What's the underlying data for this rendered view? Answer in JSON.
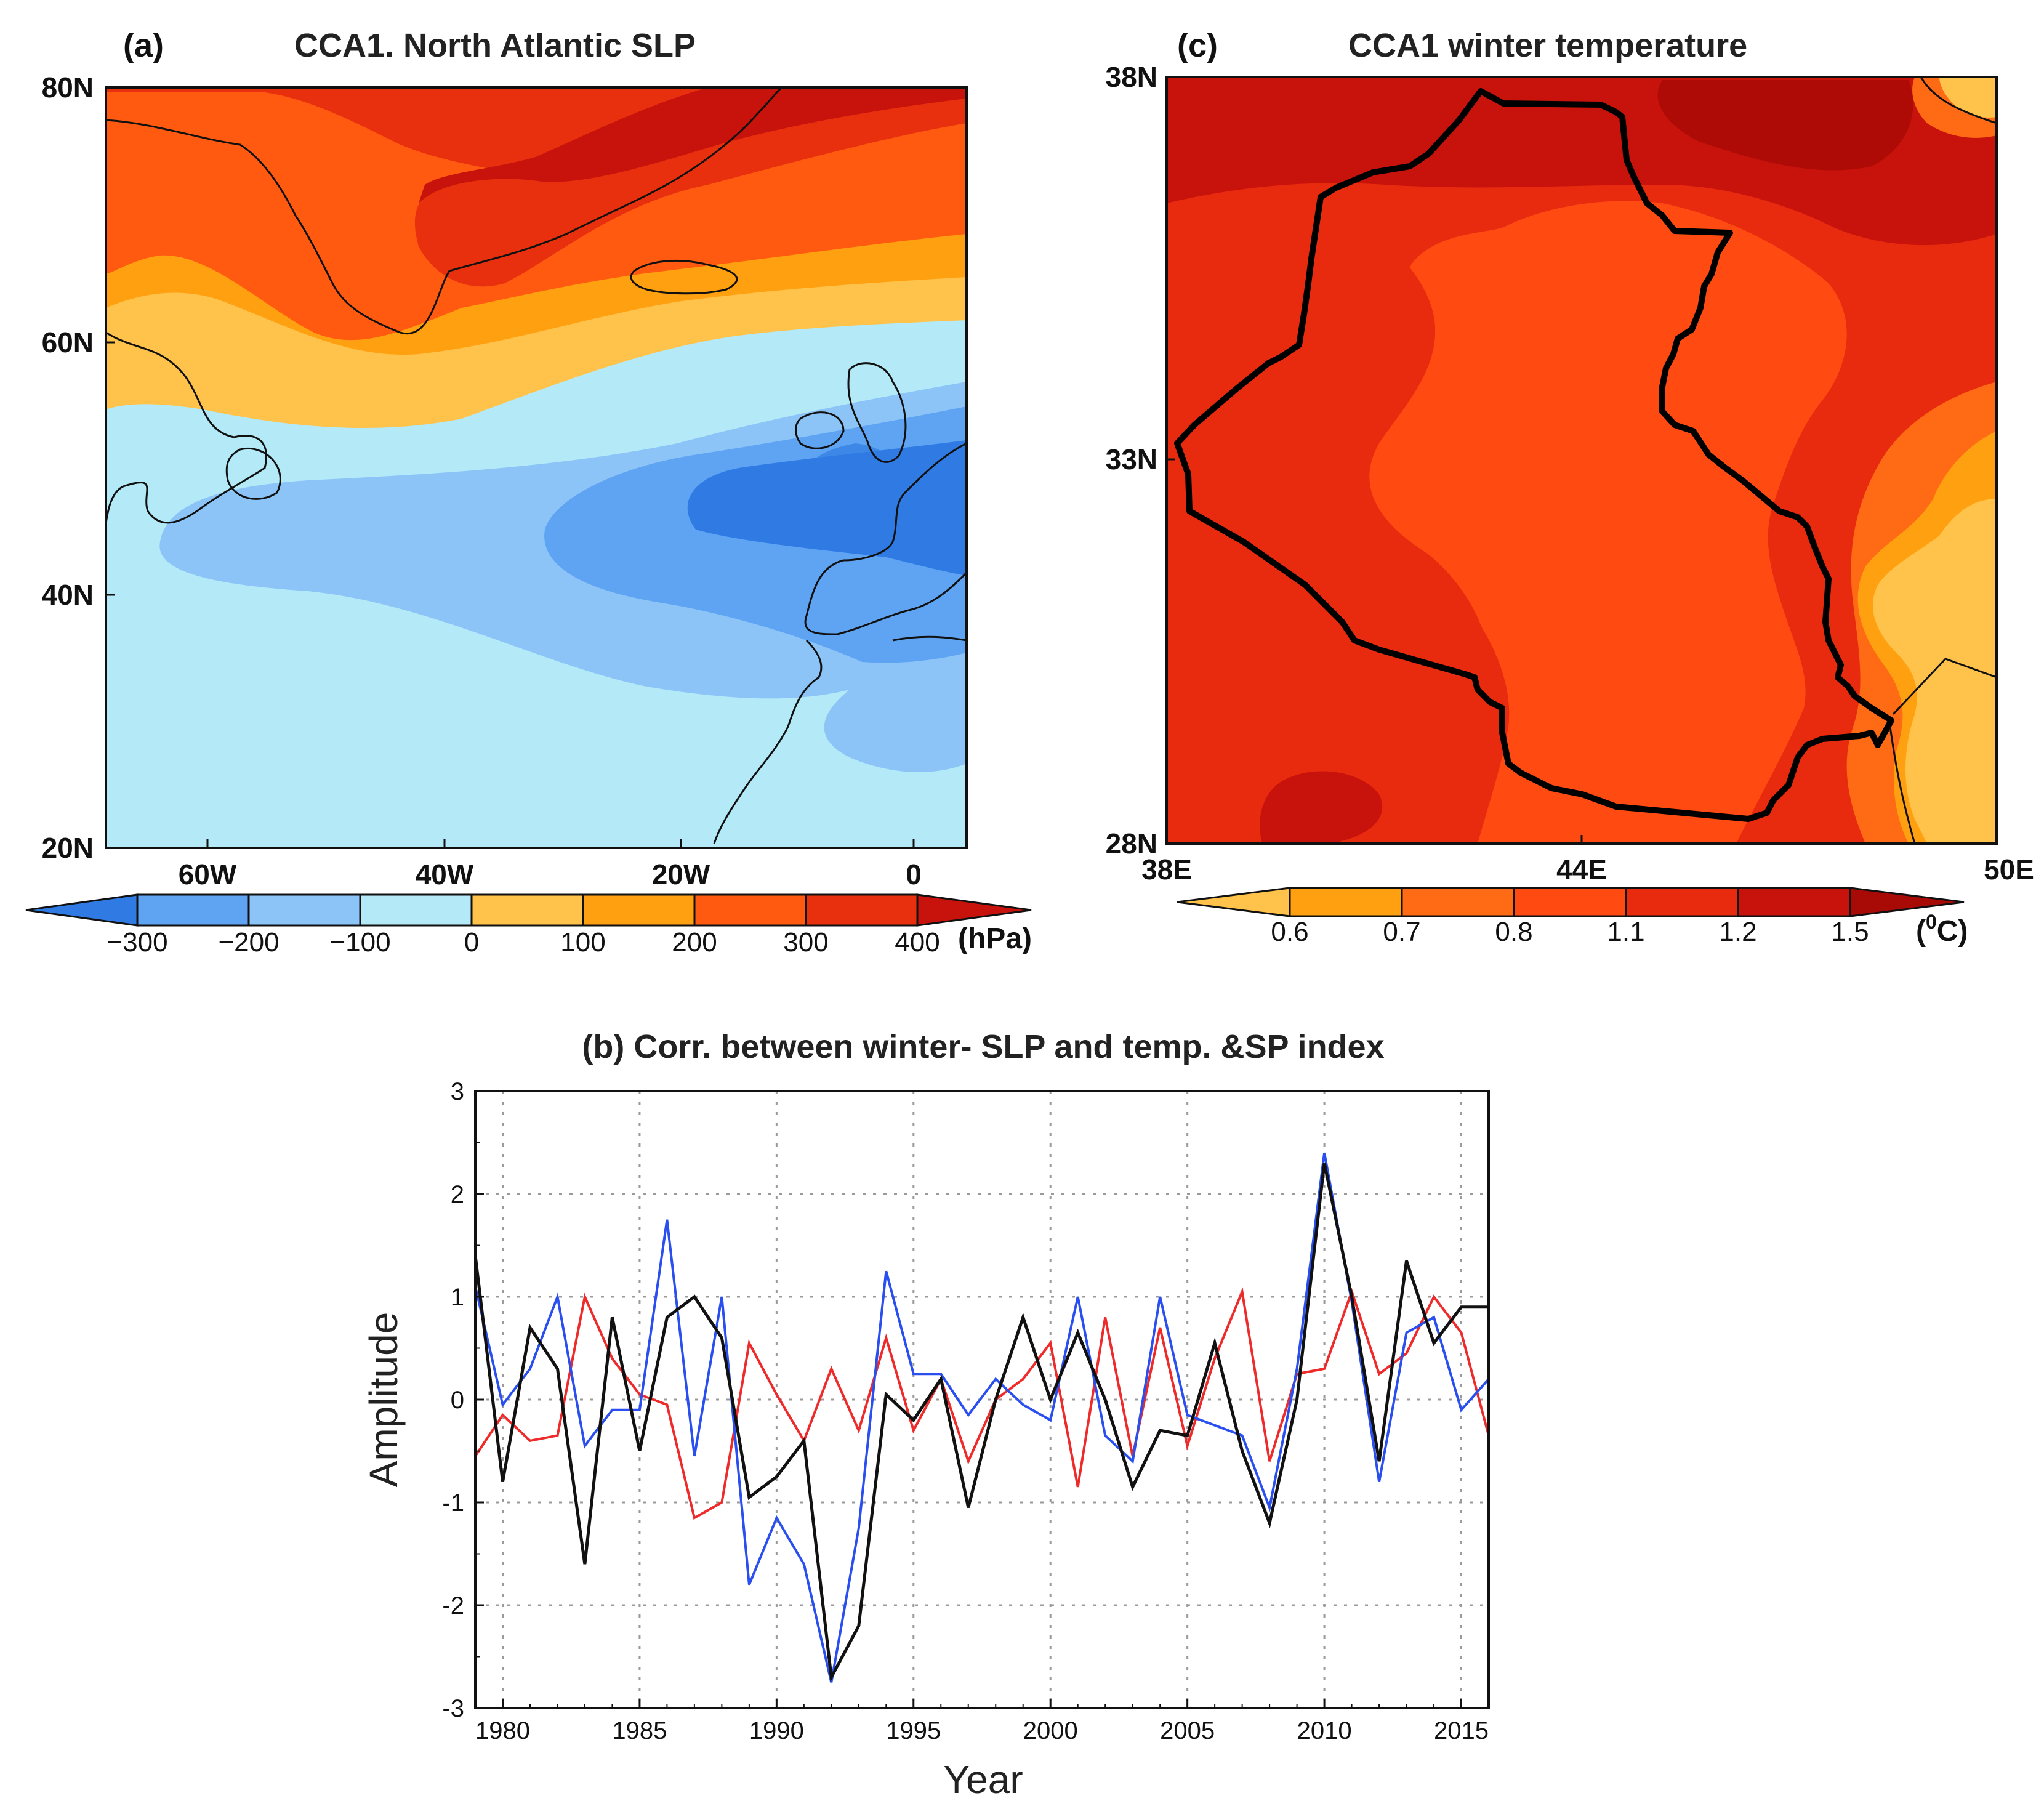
{
  "colors": {
    "neg300": "#2f7be3",
    "neg200": "#5ea4f2",
    "neg100": "#8cc4f8",
    "neg0": "#b4eaf8",
    "pos0": "#ffc24a",
    "pos100": "#ffa010",
    "pos200": "#ff5a10",
    "pos300": "#e8300e",
    "pos400": "#c8120c",
    "t06": "#ffc24a",
    "t07": "#ffa010",
    "t08": "#ff6a14",
    "t11": "#ff4a12",
    "t12": "#e82a0e",
    "t15": "#c8120c",
    "t15p": "#a80a06",
    "series_black": "#111111",
    "series_blue": "#2a4ff0",
    "series_red": "#ee2a2a"
  },
  "panel_a": {
    "label": "(a)",
    "title": "CCA1. North Atlantic SLP",
    "lat_ticks": [
      "80N",
      "60N",
      "40N",
      "20N"
    ],
    "lon_ticks": [
      "60W",
      "40W",
      "20W",
      "0"
    ],
    "colorbar_ticks": [
      "−300",
      "−200",
      "−100",
      "0",
      "100",
      "200",
      "300",
      "400"
    ],
    "units": "(hPa)"
  },
  "panel_c": {
    "label": "(c)",
    "title": "CCA1 winter temperature",
    "lat_ticks": [
      "38N",
      "33N",
      "28N"
    ],
    "lon_ticks": [
      "38E",
      "44E",
      "50E"
    ],
    "colorbar_ticks": [
      "0.6",
      "0.7",
      "0.8",
      "1.1",
      "1.2",
      "1.5"
    ],
    "units_main": "(",
    "units_sup": "0",
    "units_tail": "C)"
  },
  "panel_b": {
    "title": "(b)  Corr. between winter- SLP and temp. &SP index"
  },
  "chart_data": {
    "type": "line",
    "title": "(b)  Corr. between winter- SLP and temp. &SP index",
    "xlabel": "Year",
    "ylabel": "Amplitude",
    "xlim": [
      1979,
      2016
    ],
    "ylim": [
      -3,
      3
    ],
    "xticks": [
      1980,
      1985,
      1990,
      1995,
      2000,
      2005,
      2010,
      2015
    ],
    "yticks": [
      -3,
      -2,
      -1,
      0,
      1,
      2,
      3
    ],
    "grid": true,
    "x": [
      1979,
      1980,
      1981,
      1982,
      1983,
      1984,
      1985,
      1986,
      1987,
      1988,
      1989,
      1990,
      1991,
      1992,
      1993,
      1994,
      1995,
      1996,
      1997,
      1998,
      1999,
      2000,
      2001,
      2002,
      2003,
      2004,
      2005,
      2006,
      2007,
      2008,
      2009,
      2010,
      2011,
      2012,
      2013,
      2014,
      2015,
      2016
    ],
    "series": [
      {
        "name": "black",
        "color": "#111111",
        "values": [
          1.4,
          -0.8,
          0.7,
          0.3,
          -1.6,
          0.8,
          -0.5,
          0.8,
          1.0,
          0.6,
          -0.95,
          -0.75,
          -0.4,
          -2.7,
          -2.2,
          0.05,
          -0.2,
          0.2,
          -1.05,
          0.0,
          0.8,
          0.0,
          0.65,
          0.0,
          -0.85,
          -0.3,
          -0.35,
          0.55,
          -0.5,
          -1.2,
          0.0,
          2.3,
          1.0,
          -0.6,
          1.35,
          0.55,
          0.9,
          0.9
        ]
      },
      {
        "name": "blue",
        "color": "#2a4ff0",
        "values": [
          1.1,
          -0.05,
          0.3,
          1.0,
          -0.45,
          -0.1,
          -0.1,
          1.75,
          -0.55,
          1.0,
          -1.8,
          -1.15,
          -1.6,
          -2.75,
          -1.25,
          1.25,
          0.25,
          0.25,
          -0.15,
          0.2,
          -0.05,
          -0.2,
          1.0,
          -0.35,
          -0.6,
          1.0,
          -0.15,
          -0.25,
          -0.35,
          -1.05,
          0.3,
          2.4,
          0.95,
          -0.8,
          0.65,
          0.8,
          -0.1,
          0.2
        ]
      },
      {
        "name": "red",
        "color": "#ee2a2a",
        "values": [
          -0.55,
          -0.15,
          -0.4,
          -0.35,
          1.0,
          0.4,
          0.05,
          -0.05,
          -1.15,
          -1.0,
          0.55,
          0.05,
          -0.4,
          0.3,
          -0.3,
          0.6,
          -0.3,
          0.2,
          -0.6,
          0.0,
          0.2,
          0.55,
          -0.85,
          0.8,
          -0.55,
          0.7,
          -0.45,
          0.4,
          1.05,
          -0.6,
          0.25,
          0.3,
          1.05,
          0.25,
          0.45,
          1.0,
          0.65,
          -0.35
        ]
      }
    ]
  }
}
